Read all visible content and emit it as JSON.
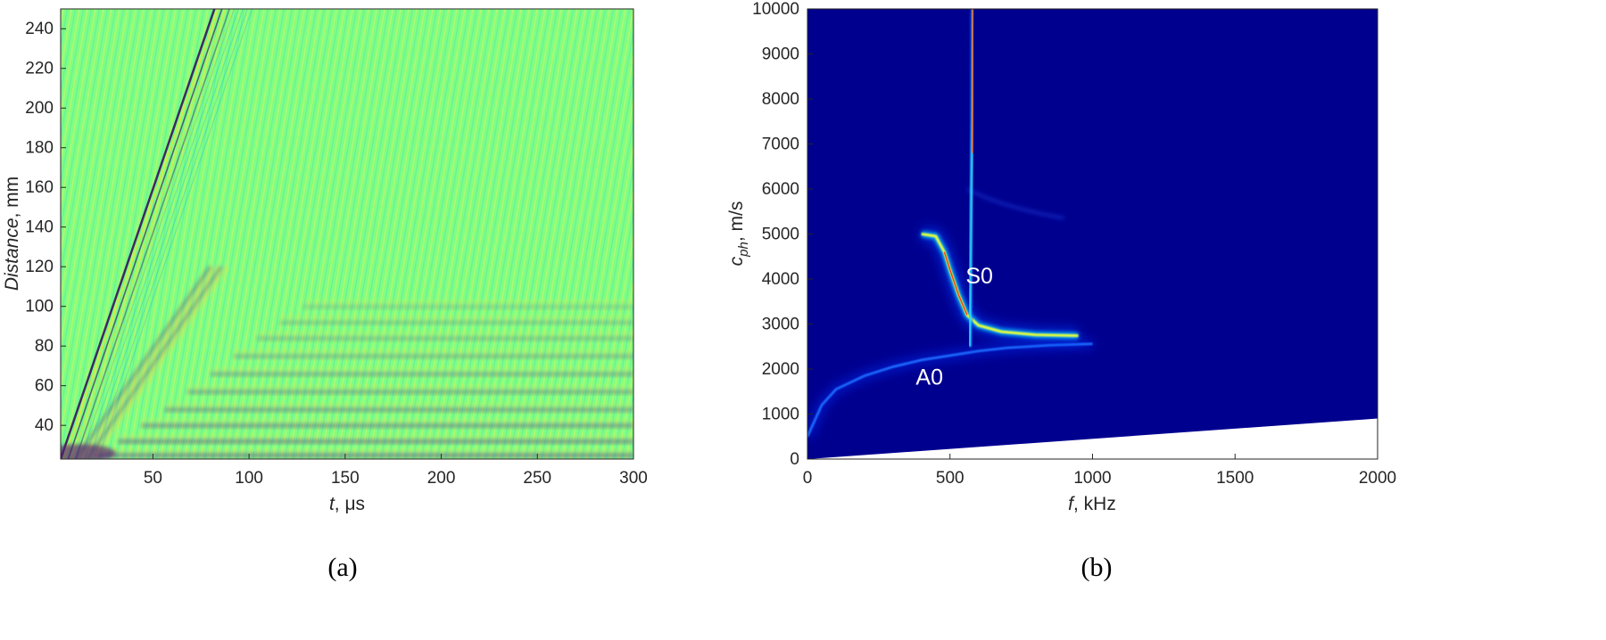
{
  "chart_data": [
    {
      "panel": "(a)",
      "type": "heatmap",
      "xlabel": {
        "var": "t",
        "unit": ", μs"
      },
      "ylabel": {
        "var": "Distance",
        "unit": ", mm"
      },
      "xlim": [
        2,
        300
      ],
      "ylim": [
        23,
        250
      ],
      "x_ticks": [
        50,
        100,
        150,
        200,
        250,
        300
      ],
      "y_ticks": [
        40,
        60,
        80,
        100,
        120,
        140,
        160,
        180,
        200,
        220,
        240
      ],
      "background_color": "#80ff80",
      "colormap": "jet",
      "wave_fronts": [
        {
          "name": "fast-front",
          "from": [
            2,
            23
          ],
          "to": [
            82,
            250
          ]
        },
        {
          "name": "slow-front",
          "from": [
            10,
            23
          ],
          "to": [
            80,
            120
          ]
        }
      ],
      "stripes_y": [
        25,
        32,
        40,
        48,
        57,
        66,
        75,
        84,
        92,
        100
      ],
      "grid": false
    },
    {
      "panel": "(b)",
      "type": "heatmap",
      "xlabel": {
        "var": "f",
        "unit": ", kHz"
      },
      "ylabel": {
        "var": "c",
        "sub": "ph",
        "unit": ", m/s"
      },
      "xlim": [
        0,
        2000
      ],
      "ylim": [
        0,
        10000
      ],
      "x_ticks": [
        0,
        500,
        1000,
        1500,
        2000
      ],
      "y_ticks": [
        0,
        1000,
        2000,
        3000,
        4000,
        5000,
        6000,
        7000,
        8000,
        9000,
        10000
      ],
      "background_color": "#00008f",
      "colormap": "jet",
      "annotations": [
        {
          "text": "S0",
          "x": 555,
          "y": 3900
        },
        {
          "text": "A0",
          "x": 380,
          "y": 1650
        }
      ],
      "modes": [
        {
          "name": "A0",
          "points": [
            [
              0,
              500
            ],
            [
              50,
              1200
            ],
            [
              100,
              1550
            ],
            [
              200,
              1850
            ],
            [
              300,
              2050
            ],
            [
              400,
              2200
            ],
            [
              500,
              2300
            ],
            [
              600,
              2400
            ],
            [
              700,
              2470
            ],
            [
              850,
              2530
            ],
            [
              1000,
              2560
            ]
          ]
        },
        {
          "name": "S0",
          "points": [
            [
              400,
              5000
            ],
            [
              450,
              4950
            ],
            [
              480,
              4600
            ],
            [
              500,
              4200
            ],
            [
              530,
              3650
            ],
            [
              560,
              3200
            ],
            [
              600,
              2970
            ],
            [
              680,
              2830
            ],
            [
              800,
              2760
            ],
            [
              950,
              2740
            ]
          ]
        },
        {
          "name": "vertical-band",
          "points": [
            [
              570,
              2500
            ],
            [
              575,
              6000
            ],
            [
              578,
              7600
            ],
            [
              580,
              10000
            ]
          ]
        }
      ],
      "white_region_edge": [
        [
          0,
          0
        ],
        [
          2000,
          900
        ]
      ],
      "grid": false
    }
  ]
}
